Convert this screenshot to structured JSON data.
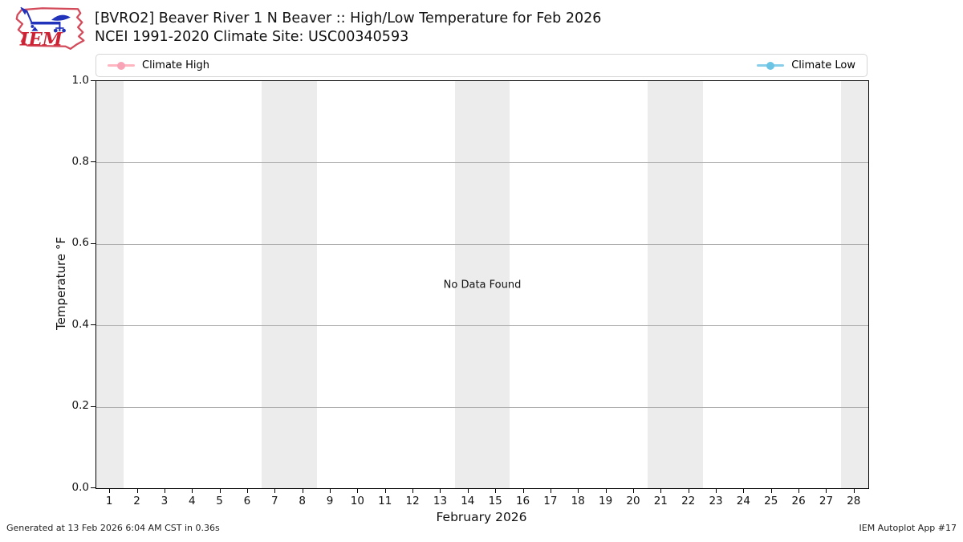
{
  "header": {
    "logo_text": "IEM",
    "title_line1": "[BVRO2] Beaver River 1 N Beaver :: High/Low Temperature for Feb 2026",
    "title_line2": "NCEI 1991-2020 Climate Site: USC00340593"
  },
  "legend": {
    "high_label": "Climate High",
    "low_label": "Climate Low",
    "high_color": "#ffb6c1",
    "high_dot_color": "#f9a3b6",
    "low_color": "#87ceeb",
    "low_dot_color": "#6cc4e4"
  },
  "plot": {
    "no_data_text": "No Data Found",
    "band_color": "#ececec",
    "grid_color": "#b0b0b0",
    "frame_color": "#000000"
  },
  "chart_data": {
    "type": "line",
    "title": "[BVRO2] Beaver River 1 N Beaver :: High/Low Temperature for Feb 2026",
    "subtitle": "NCEI 1991-2020 Climate Site: USC00340593",
    "xlabel": "February 2026",
    "ylabel": "Temperature °F",
    "xlim": [
      0.5,
      28.5
    ],
    "ylim": [
      0.0,
      1.0
    ],
    "x_ticks": [
      1,
      2,
      3,
      4,
      5,
      6,
      7,
      8,
      9,
      10,
      11,
      12,
      13,
      14,
      15,
      16,
      17,
      18,
      19,
      20,
      21,
      22,
      23,
      24,
      25,
      26,
      27,
      28
    ],
    "y_ticks": [
      "0.0",
      "0.2",
      "0.4",
      "0.6",
      "0.8",
      "1.0"
    ],
    "grid": true,
    "legend_position": "top",
    "series": [
      {
        "name": "Climate High",
        "color": "#ffb6c1",
        "x": [],
        "values": []
      },
      {
        "name": "Climate Low",
        "color": "#87ceeb",
        "x": [],
        "values": []
      }
    ],
    "weekend_bands": [
      [
        0.5,
        1.5
      ],
      [
        6.5,
        8.5
      ],
      [
        13.5,
        15.5
      ],
      [
        20.5,
        22.5
      ],
      [
        27.5,
        28.5
      ]
    ],
    "annotations": [
      "No Data Found"
    ],
    "no_data": true
  },
  "footer": {
    "left": "Generated at 13 Feb 2026 6:04 AM CST in 0.36s",
    "right": "IEM Autoplot App #17"
  }
}
